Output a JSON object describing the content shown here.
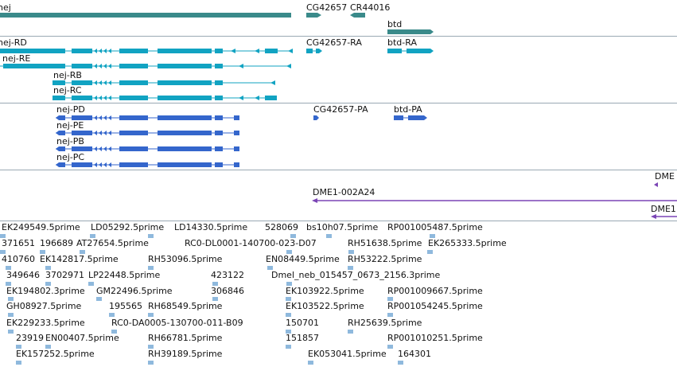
{
  "colors": {
    "gene": "#3a8a8a",
    "transcript": "#11a3c2",
    "cds": "#3466cc",
    "est_long": "#7b45b5",
    "est_mark": "#8fb9dd",
    "divider": "#9aa9b4"
  },
  "tracks": {
    "genes": {
      "nej": "nej",
      "cg42657": "CG42657",
      "cr44016": "CR44016",
      "btd": "btd"
    },
    "transcripts": {
      "nej_rd": "nej-RD",
      "nej_re": "nej-RE",
      "nej_rb": "nej-RB",
      "nej_rc": "nej-RC",
      "cg42657_ra": "CG42657-RA",
      "btd_ra": "btd-RA"
    },
    "proteins": {
      "nej_pd": "nej-PD",
      "nej_pe": "nej-PE",
      "nej_pb": "nej-PB",
      "nej_pc": "nej-PC",
      "cg42657_pa": "CG42657-PA",
      "btd_pa": "btd-PA"
    },
    "clones": {
      "dme_a": "DME",
      "dme1_002a24": "DME1-002A24",
      "dme1_b": "DME1"
    },
    "ests": [
      [
        "EK249549.5prime",
        "LD05292.5prime",
        "LD14330.5prime",
        "528069",
        "bs10h07.5prime",
        "RP001005487.5prime"
      ],
      [
        "371651",
        "196689",
        "AT27654.5prime",
        "RC0-DL0001-140700-023-D07",
        "RH51638.5prime",
        "EK265333.5prime"
      ],
      [
        "410760",
        "EK142817.5prime",
        "RH53096.5prime",
        "EN08449.5prime",
        "RH53222.5prime"
      ],
      [
        "349646",
        "3702971",
        "LP22448.5prime",
        "423122",
        "Dmel_neb_015457_0673_2156.3prime"
      ],
      [
        "EK194802.3prime",
        "GM22496.5prime",
        "306846",
        "EK103922.5prime",
        "RP001009667.5prime"
      ],
      [
        "GH08927.5prime",
        "195565",
        "RH68549.5prime",
        "EK103522.5prime",
        "RP001054245.5prime"
      ],
      [
        "EK229233.5prime",
        "RC0-DA0005-130700-011-B09",
        "150701",
        "RH25639.5prime"
      ],
      [
        "23919",
        "EN00407.5prime",
        "RH66781.5prime",
        "151857",
        "RP001010251.5prime"
      ],
      [
        "EK157252.5prime",
        "RH39189.5prime",
        "EK053041.5prime",
        "164301"
      ]
    ]
  }
}
